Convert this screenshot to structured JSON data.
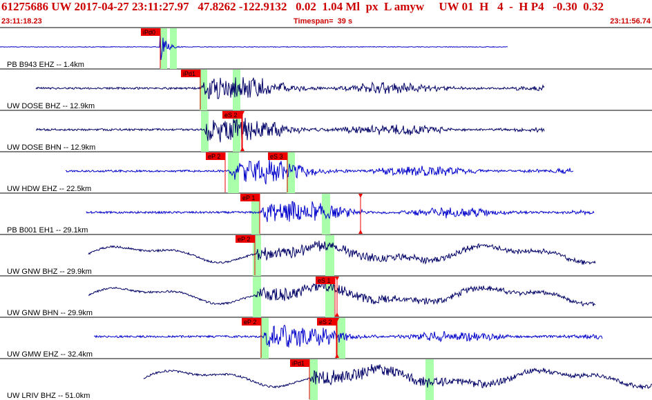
{
  "header": {
    "title": "61275686 UW 2017-04-27 23:11:27.97   47.8262 -122.9132   0.02  1.04 Ml  px  L amyw     UW 01  H   4  -  H P4   -0.30  0.32",
    "start_time": "23:11:18.23",
    "timespan": "Timespan=  39 s",
    "end_time": "23:11:56.74"
  },
  "colors": {
    "header_text": "#cc0000",
    "pick_box": "#ee0000",
    "window": "#aaffaa",
    "trace_blue": "#0000cc",
    "trace_navy": "#000066"
  },
  "traces": [
    {
      "label": "PB B943 EHZ -- 1.4km",
      "color": "trace_blue",
      "start": 0,
      "end": 735,
      "onset": 232,
      "amp": 22,
      "style": "burst",
      "picks": [
        {
          "text": "iPd0",
          "x": 232
        }
      ],
      "windows": [
        [
          232,
          242
        ],
        [
          246,
          256
        ]
      ],
      "markers": []
    },
    {
      "label": "UW DOSE BHZ -- 12.9km",
      "color": "trace_navy",
      "start": 52,
      "end": 788,
      "onset": 290,
      "amp": 20,
      "style": "quake",
      "picks": [
        {
          "text": "iPd1",
          "x": 290
        }
      ],
      "windows": [
        [
          289,
          300
        ],
        [
          337,
          348
        ]
      ],
      "markers": []
    },
    {
      "label": "UW DOSE BHN -- 12.9km",
      "color": "trace_navy",
      "start": 52,
      "end": 788,
      "onset": 292,
      "amp": 20,
      "style": "quake",
      "picks": [
        {
          "text": "eS 2",
          "x": 350
        }
      ],
      "windows": [
        [
          291,
          302
        ],
        [
          337,
          348
        ]
      ],
      "markers": [
        351
      ]
    },
    {
      "label": "UW HDW EHZ -- 22.5km",
      "color": "trace_blue",
      "start": 95,
      "end": 830,
      "onset": 330,
      "amp": 18,
      "style": "quake",
      "picks": [
        {
          "text": "eP 2",
          "x": 326
        },
        {
          "text": "eS 3",
          "x": 416
        }
      ],
      "windows": [
        [
          330,
          346
        ],
        [
          415,
          427
        ]
      ],
      "markers": []
    },
    {
      "label": "PB B001 EH1 -- 29.1km",
      "color": "trace_blue",
      "start": 125,
      "end": 860,
      "onset": 376,
      "amp": 18,
      "style": "quake",
      "picks": [
        {
          "text": "eP 1",
          "x": 376
        }
      ],
      "windows": [
        [
          364,
          376
        ],
        [
          466,
          478
        ]
      ],
      "markers": [
        522
      ]
    },
    {
      "label": "UW GNW BHZ -- 29.9km",
      "color": "trace_navy",
      "start": 128,
      "end": 862,
      "onset": 368,
      "amp": 20,
      "style": "wave",
      "picks": [
        {
          "text": "eP 2",
          "x": 369
        }
      ],
      "windows": [
        [
          366,
          378
        ],
        [
          471,
          484
        ]
      ],
      "markers": []
    },
    {
      "label": "UW GNW BHN -- 29.9km",
      "color": "trace_navy",
      "start": 128,
      "end": 862,
      "onset": 370,
      "amp": 20,
      "style": "wave",
      "picks": [
        {
          "text": "eS 1",
          "x": 485
        }
      ],
      "windows": [
        [
          366,
          378
        ],
        [
          471,
          484
        ]
      ],
      "markers": [
        488
      ]
    },
    {
      "label": "UW GMW EHZ -- 32.4km",
      "color": "trace_blue",
      "start": 136,
      "end": 872,
      "onset": 378,
      "amp": 18,
      "style": "quake",
      "picks": [
        {
          "text": "eP 2",
          "x": 378
        },
        {
          "text": "eS 2",
          "x": 487
        }
      ],
      "windows": [
        [
          377,
          389
        ],
        [
          488,
          500
        ]
      ],
      "markers": [
        488
      ]
    },
    {
      "label": "UW LRIV BHZ -- 51.0km",
      "color": "trace_navy",
      "start": 208,
      "end": 944,
      "onset": 448,
      "amp": 22,
      "style": "wave",
      "picks": [
        {
          "text": "iPd1",
          "x": 448
        }
      ],
      "windows": [
        [
          448,
          460
        ],
        [
          616,
          628
        ]
      ],
      "markers": []
    }
  ]
}
